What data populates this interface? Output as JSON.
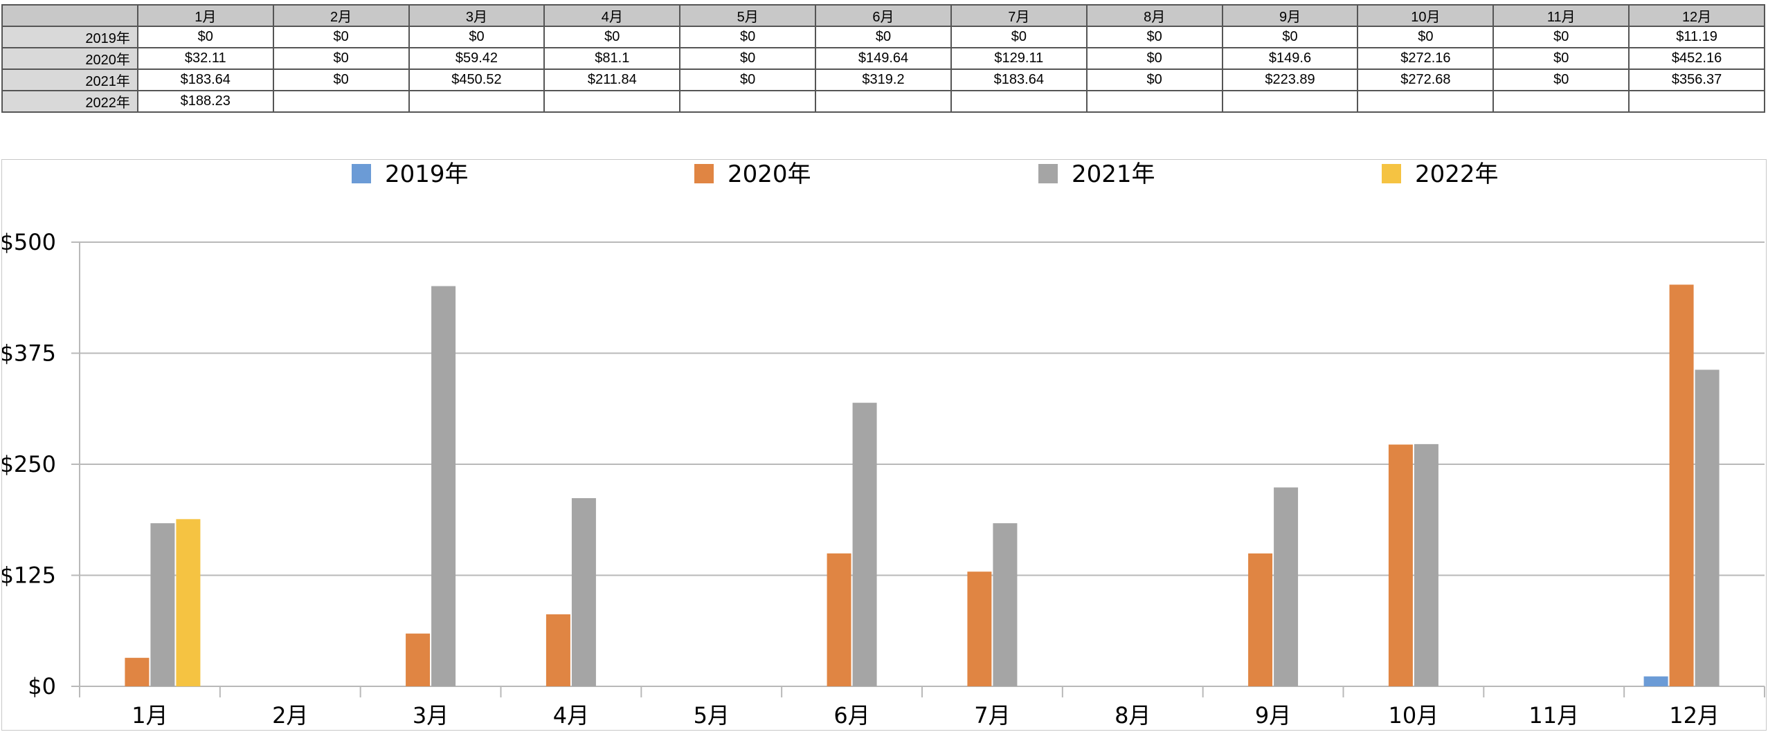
{
  "table": {
    "corner": "",
    "months": [
      "1月",
      "2月",
      "3月",
      "4月",
      "5月",
      "6月",
      "7月",
      "8月",
      "9月",
      "10月",
      "11月",
      "12月"
    ],
    "rows": [
      {
        "year": "2019年",
        "cells": [
          "$0",
          "$0",
          "$0",
          "$0",
          "$0",
          "$0",
          "$0",
          "$0",
          "$0",
          "$0",
          "$0",
          "$11.19"
        ]
      },
      {
        "year": "2020年",
        "cells": [
          "$32.11",
          "$0",
          "$59.42",
          "$81.1",
          "$0",
          "$149.64",
          "$129.11",
          "$0",
          "$149.6",
          "$272.16",
          "$0",
          "$452.16"
        ]
      },
      {
        "year": "2021年",
        "cells": [
          "$183.64",
          "$0",
          "$450.52",
          "$211.84",
          "$0",
          "$319.2",
          "$183.64",
          "$0",
          "$223.89",
          "$272.68",
          "$0",
          "$356.37"
        ]
      },
      {
        "year": "2022年",
        "cells": [
          "$188.23",
          "",
          "",
          "",
          "",
          "",
          "",
          "",
          "",
          "",
          "",
          ""
        ]
      }
    ]
  },
  "chart_data": {
    "type": "bar",
    "categories": [
      "1月",
      "2月",
      "3月",
      "4月",
      "5月",
      "6月",
      "7月",
      "8月",
      "9月",
      "10月",
      "11月",
      "12月"
    ],
    "series": [
      {
        "name": "2019年",
        "color": "#6b9bd6",
        "values": [
          0,
          0,
          0,
          0,
          0,
          0,
          0,
          0,
          0,
          0,
          0,
          11.19
        ]
      },
      {
        "name": "2020年",
        "color": "#e08543",
        "values": [
          32.11,
          0,
          59.42,
          81.1,
          0,
          149.64,
          129.11,
          0,
          149.6,
          272.16,
          0,
          452.16
        ]
      },
      {
        "name": "2021年",
        "color": "#a5a5a5",
        "values": [
          183.64,
          0,
          450.52,
          211.84,
          0,
          319.2,
          183.64,
          0,
          223.89,
          272.68,
          0,
          356.37
        ]
      },
      {
        "name": "2022年",
        "color": "#f5c342",
        "values": [
          188.23,
          null,
          null,
          null,
          null,
          null,
          null,
          null,
          null,
          null,
          null,
          null
        ]
      }
    ],
    "ylim": [
      0,
      500
    ],
    "yticks": [
      0,
      125,
      250,
      375,
      500
    ],
    "ytick_labels": [
      "$0",
      "$125",
      "$250",
      "$375",
      "$500"
    ],
    "legend_position": "top",
    "grid": true
  }
}
